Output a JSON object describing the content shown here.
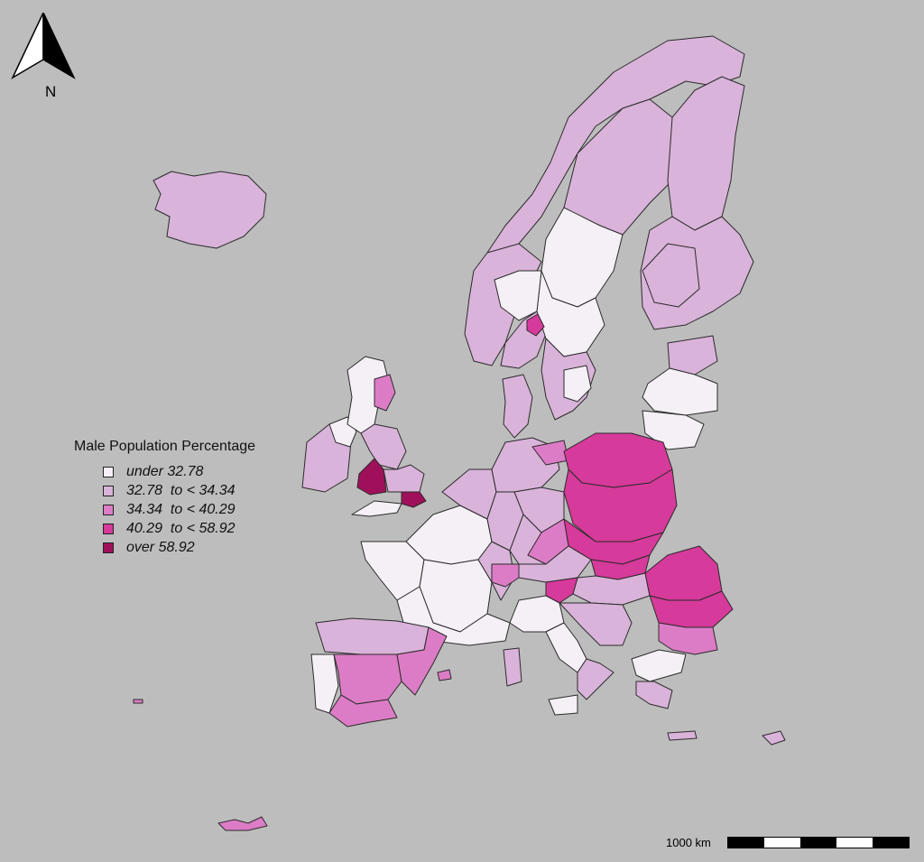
{
  "legend": {
    "title": "Male Population Percentage",
    "items": [
      {
        "label": "under 32.78",
        "color": "#f5f0f6"
      },
      {
        "label": "32.78  to < 34.34",
        "color": "#d9b3d9"
      },
      {
        "label": "34.34  to < 40.29",
        "color": "#dd7cc6"
      },
      {
        "label": "40.29  to < 58.92",
        "color": "#d63a9a"
      },
      {
        "label": "over 58.92",
        "color": "#a0105a"
      }
    ]
  },
  "north_arrow": {
    "label": "N",
    "icon": "north-arrow-icon"
  },
  "scale_bar": {
    "label": "1000 km",
    "segments": 5
  },
  "map": {
    "background": "#bdbdbd",
    "stroke": "#2b2b2b"
  }
}
